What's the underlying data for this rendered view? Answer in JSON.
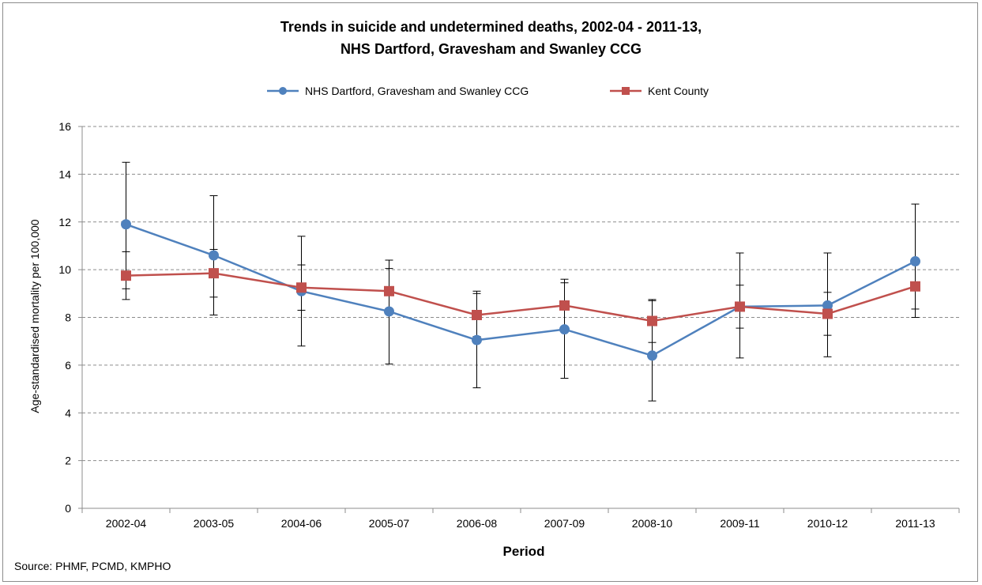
{
  "chart_data": {
    "type": "line",
    "title": "Trends in suicide and undetermined deaths, 2002-04 - 2011-13,",
    "subtitle": "NHS Dartford, Gravesham and Swanley CCG",
    "xlabel": "Period",
    "ylabel": "Age-standardised mortality per 100,000",
    "source": "Source: PHMF, PCMD, KMPHO",
    "ylim": [
      0,
      16
    ],
    "yticks": [
      0,
      2,
      4,
      6,
      8,
      10,
      12,
      14,
      16
    ],
    "grid": "horizontal dashed",
    "legend_position": "top",
    "categories": [
      "2002-04",
      "2003-05",
      "2004-06",
      "2005-07",
      "2006-08",
      "2007-09",
      "2008-10",
      "2009-11",
      "2010-12",
      "2011-13"
    ],
    "series": [
      {
        "name": "NHS Dartford, Gravesham and Swanley CCG",
        "color": "#4f81bd",
        "marker": "circle",
        "values": [
          11.9,
          10.6,
          9.1,
          8.25,
          7.05,
          7.5,
          6.4,
          8.45,
          8.5,
          10.35
        ],
        "lower": [
          9.2,
          8.1,
          6.8,
          6.05,
          5.05,
          5.45,
          4.5,
          6.3,
          6.35,
          8.0
        ],
        "upper": [
          14.5,
          13.1,
          11.4,
          10.4,
          9.1,
          9.6,
          8.7,
          10.7,
          10.7,
          12.75
        ]
      },
      {
        "name": "Kent County",
        "color": "#c0504d",
        "marker": "square",
        "values": [
          9.75,
          9.85,
          9.25,
          9.1,
          8.1,
          8.5,
          7.85,
          8.45,
          8.15,
          9.3
        ],
        "lower": [
          8.75,
          8.85,
          8.3,
          8.15,
          7.2,
          7.6,
          6.95,
          7.55,
          7.25,
          8.35
        ],
        "upper": [
          10.75,
          10.85,
          10.2,
          10.05,
          9.0,
          9.45,
          8.75,
          9.35,
          9.05,
          10.25
        ]
      }
    ]
  }
}
